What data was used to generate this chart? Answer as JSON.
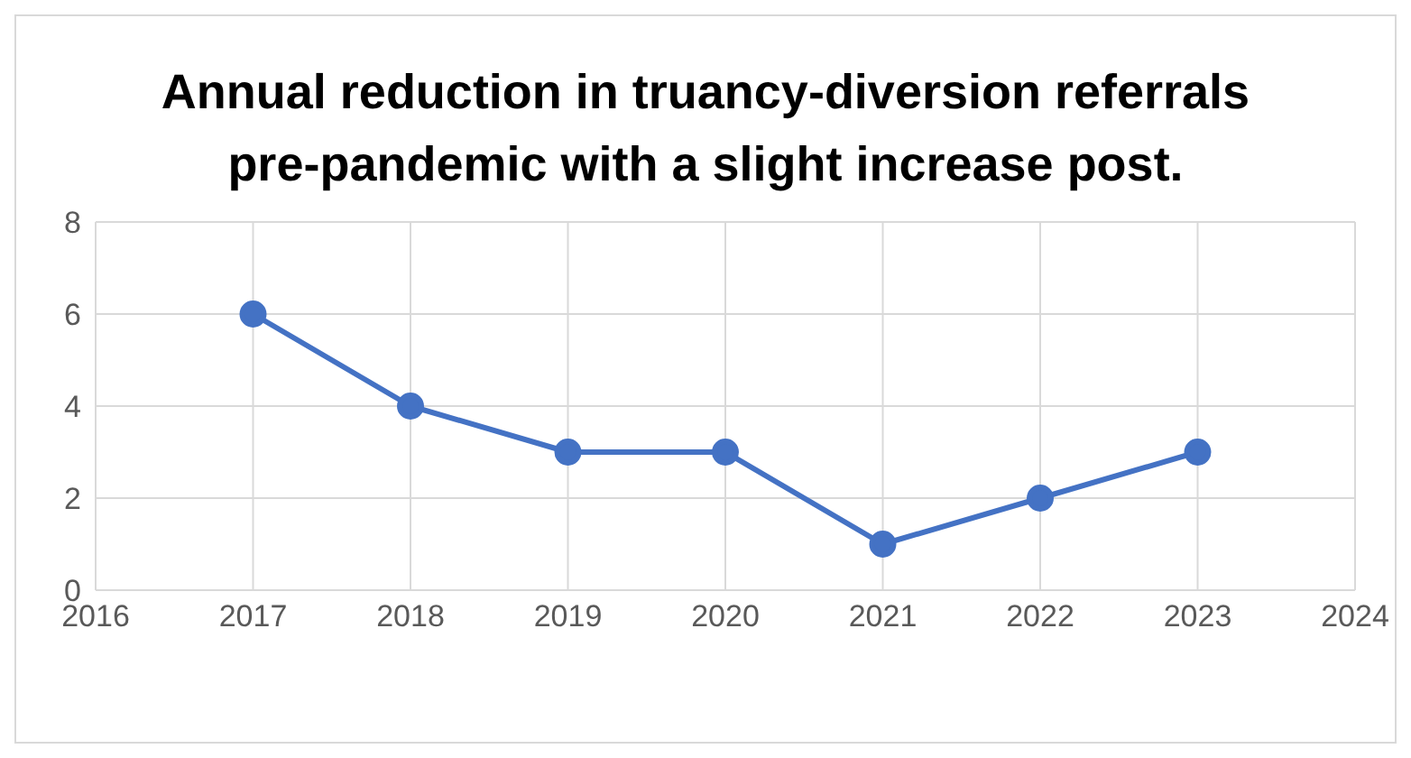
{
  "chart_data": {
    "type": "line",
    "title": "Annual reduction in truancy-diversion referrals pre-pandemic with a slight increase post.",
    "x": [
      2017,
      2018,
      2019,
      2020,
      2021,
      2022,
      2023
    ],
    "series": [
      {
        "color": "#4472c4",
        "values": [
          6,
          4,
          3,
          3,
          1,
          2,
          3
        ]
      }
    ],
    "xlim": [
      2016,
      2024
    ],
    "xticks": [
      2016,
      2017,
      2018,
      2019,
      2020,
      2021,
      2022,
      2023,
      2024
    ],
    "ylim": [
      0,
      8
    ],
    "yticks": [
      0,
      2,
      4,
      6,
      8
    ],
    "grid": true,
    "marker": "circle",
    "line_style": "solid"
  }
}
